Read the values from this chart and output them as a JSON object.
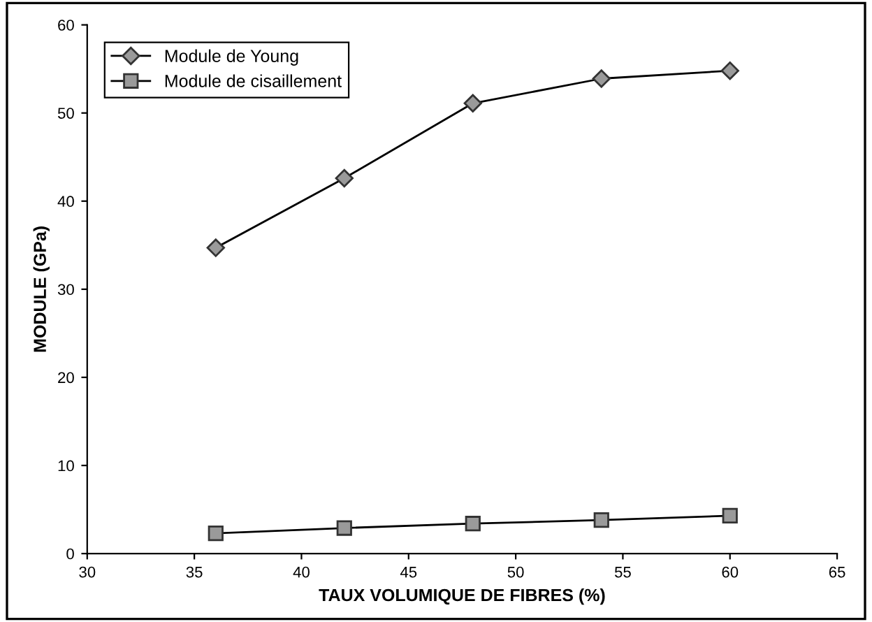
{
  "chart_data": {
    "type": "line",
    "xlabel": "TAUX VOLUMIQUE DE FIBRES (%)",
    "ylabel": "MODULE (GPa)",
    "x": [
      36,
      42,
      48,
      54,
      60
    ],
    "series": [
      {
        "name": "Module de Young",
        "color": "#000000",
        "marker": "diamond",
        "values": [
          34.7,
          42.6,
          51.1,
          53.9,
          54.8
        ]
      },
      {
        "name": "Module de cisaillement",
        "color": "#000000",
        "marker": "square",
        "values": [
          2.3,
          2.9,
          3.4,
          3.8,
          4.3
        ]
      }
    ],
    "xlim": [
      30,
      65
    ],
    "xticks": [
      30,
      35,
      40,
      45,
      50,
      55,
      60,
      65
    ],
    "ylim": [
      0,
      60
    ],
    "yticks": [
      0,
      10,
      20,
      30,
      40,
      50,
      60
    ],
    "grid": false,
    "legend": "top left",
    "line_style": "solid"
  }
}
